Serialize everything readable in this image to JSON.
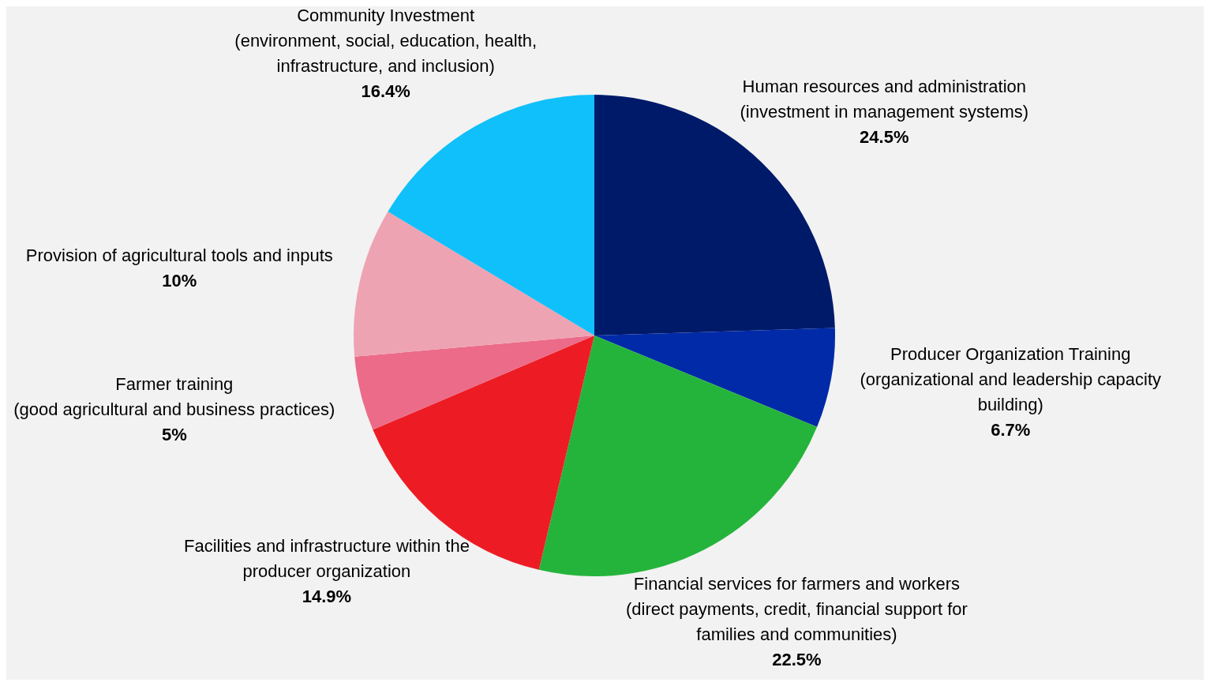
{
  "chart_data": {
    "type": "pie",
    "categories": [
      "Human resources and administration (investment in management systems)",
      "Producer Organization Training (organizational and leadership capacity building)",
      "Financial services for farmers and workers (direct payments, credit, financial support for families and communities)",
      "Facilities and infrastructure within the producer organization",
      "Farmer training (good agricultural and business practices)",
      "Provision of agricultural tools and inputs",
      "Community Investment (environment, social, education, health, infrastructure, and inclusion)"
    ],
    "values": [
      24.5,
      6.7,
      22.5,
      14.9,
      5,
      10,
      16.4
    ],
    "value_labels": [
      "24.5%",
      "6.7%",
      "22.5%",
      "14.9%",
      "5%",
      "10%",
      "16.4%"
    ],
    "colors": [
      "#001a6a",
      "#002aa8",
      "#25b43b",
      "#ed1c24",
      "#ec6b88",
      "#eea3b3",
      "#10c0fa"
    ],
    "legend": false
  }
}
